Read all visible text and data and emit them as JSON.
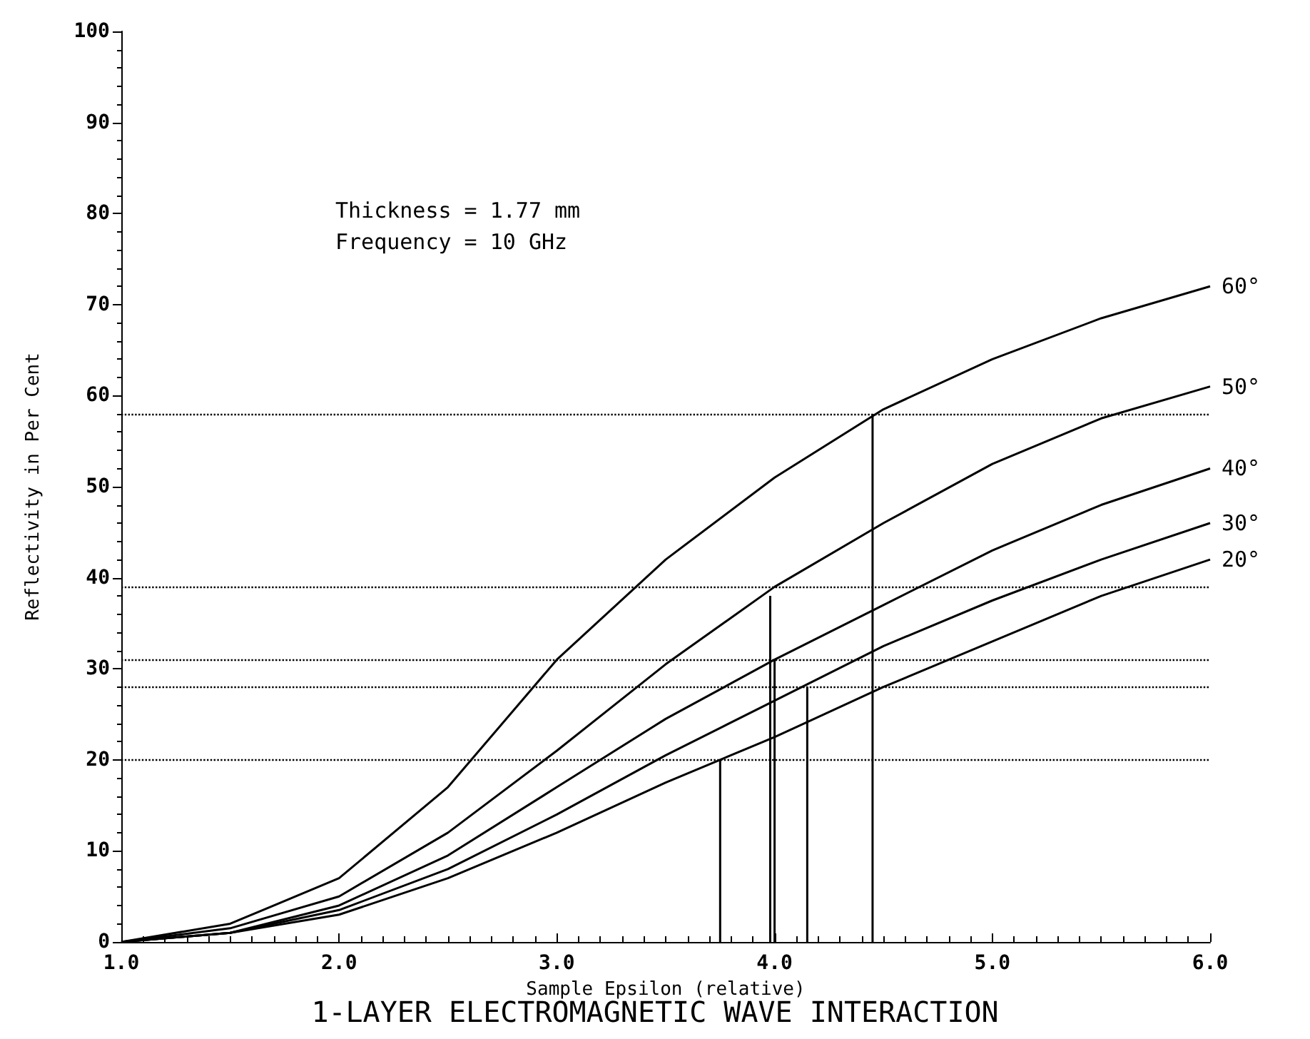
{
  "chart_data": {
    "type": "line",
    "title": "1-LAYER ELECTROMAGNETIC WAVE INTERACTION",
    "xlabel": "Sample Epsilon (relative)",
    "ylabel": "Reflectivity in Per Cent",
    "annotations": [
      "Thickness = 1.77 mm",
      "Frequency = 10 GHz"
    ],
    "x": [
      1.0,
      1.5,
      2.0,
      2.5,
      3.0,
      3.5,
      4.0,
      4.5,
      5.0,
      5.5,
      6.0
    ],
    "series": [
      {
        "name": "60°",
        "color": "#000000",
        "values": [
          0,
          2,
          7,
          17,
          31,
          42,
          51,
          58.5,
          64,
          68.5,
          72
        ]
      },
      {
        "name": "50°",
        "color": "#000000",
        "values": [
          0,
          1.5,
          5,
          12,
          21,
          30.5,
          39,
          46,
          52.5,
          57.5,
          61
        ]
      },
      {
        "name": "40°",
        "color": "#000000",
        "values": [
          0,
          1,
          4,
          9.5,
          17,
          24.5,
          31,
          37,
          43,
          48,
          52
        ]
      },
      {
        "name": "30°",
        "color": "#000000",
        "values": [
          0,
          1,
          3.5,
          8,
          14,
          20.5,
          26.5,
          32.5,
          37.5,
          42,
          46
        ]
      },
      {
        "name": "20°",
        "color": "#000000",
        "values": [
          0,
          1,
          3,
          7,
          12,
          17.5,
          22.5,
          28,
          33,
          38,
          42
        ]
      },
      {
        "color": "#000000",
        "x": [
          3.75,
          3.75
        ],
        "values": [
          0,
          20
        ]
      },
      {
        "color": "#000000",
        "x": [
          3.98,
          3.98
        ],
        "values": [
          0,
          38
        ]
      },
      {
        "color": "#000000",
        "x": [
          4.0,
          4.0
        ],
        "values": [
          0,
          31
        ]
      },
      {
        "color": "#000000",
        "x": [
          4.15,
          4.15
        ],
        "values": [
          0,
          28
        ]
      },
      {
        "color": "#000000",
        "x": [
          4.45,
          4.45
        ],
        "values": [
          0,
          58
        ]
      }
    ],
    "ref_lines": [
      {
        "axis": "y",
        "value": 58,
        "color": "#000000",
        "line_style": "dotted"
      },
      {
        "axis": "y",
        "value": 39,
        "color": "#000000",
        "line_style": "dotted"
      },
      {
        "axis": "y",
        "value": 31,
        "color": "#000000",
        "line_style": "dotted"
      },
      {
        "axis": "y",
        "value": 28,
        "color": "#000000",
        "line_style": "dotted"
      },
      {
        "axis": "y",
        "value": 20,
        "color": "#000000",
        "line_style": "dotted"
      }
    ],
    "xlim": [
      1,
      6
    ],
    "xticks": [
      {
        "value": 1,
        "label": "1.0"
      },
      {
        "value": 2,
        "label": "2.0"
      },
      {
        "value": 3,
        "label": "3.0"
      },
      {
        "value": 4,
        "label": "4.0"
      },
      {
        "value": 5,
        "label": "5.0"
      },
      {
        "value": 6,
        "label": "6.0"
      }
    ],
    "ylim": [
      0,
      100
    ],
    "yticks": [
      0,
      10,
      20,
      30,
      40,
      50,
      60,
      70,
      80,
      90,
      100
    ],
    "grid": false,
    "legend": false,
    "marker": "none",
    "line_style": "solid"
  }
}
